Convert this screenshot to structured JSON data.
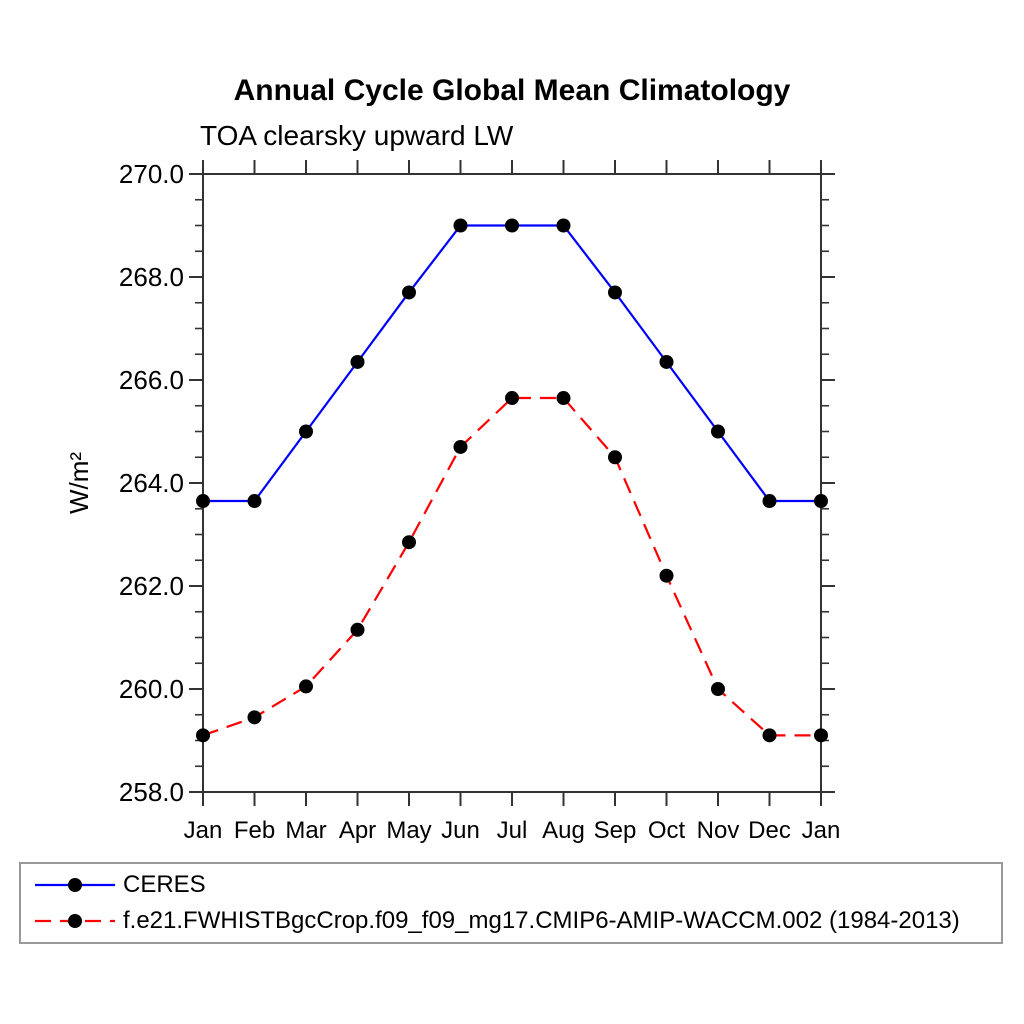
{
  "title": "Annual Cycle Global Mean Climatology",
  "subtitle": "TOA clearsky upward LW",
  "chart_data": {
    "type": "line",
    "x": [
      "Jan",
      "Feb",
      "Mar",
      "Apr",
      "May",
      "Jun",
      "Jul",
      "Aug",
      "Sep",
      "Oct",
      "Nov",
      "Dec",
      "Jan"
    ],
    "xlabel": "",
    "ylabel": "W/m²",
    "ylim": [
      258.0,
      270.0
    ],
    "ytick_interval": 2.0,
    "yminor_interval": 0.5,
    "ytick_labels": [
      "258.0",
      "260.0",
      "262.0",
      "264.0",
      "266.0",
      "268.0",
      "270.0"
    ],
    "grid": false,
    "legend_position": "bottom",
    "axis_color": "#333333",
    "marker_color": "#000000",
    "series": [
      {
        "name": "CERES",
        "color": "#0000ff",
        "style": "solid",
        "marker": "circle",
        "values": [
          263.65,
          263.65,
          265.0,
          266.35,
          267.7,
          269.0,
          269.0,
          269.0,
          267.7,
          266.35,
          265.0,
          263.65,
          263.65
        ]
      },
      {
        "name": "f.e21.FWHISTBgcCrop.f09_f09_mg17.CMIP6-AMIP-WACCM.002 (1984-2013)",
        "color": "#ff0000",
        "style": "dashed",
        "marker": "circle",
        "values": [
          259.1,
          259.45,
          260.05,
          261.15,
          262.85,
          264.7,
          265.65,
          265.65,
          264.5,
          262.2,
          260.0,
          259.1,
          259.1
        ]
      }
    ]
  }
}
